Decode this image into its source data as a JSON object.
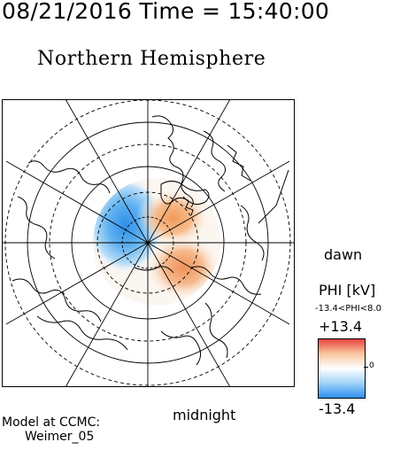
{
  "header": {
    "text": "08/21/2016 Time = 15:40:00"
  },
  "title": "Northern Hemisphere",
  "labels": {
    "dawn": "dawn",
    "midnight": "midnight"
  },
  "colorbar": {
    "title": "PHI [kV]",
    "range_text": "-13.4<PHI<8.0",
    "max_label": "+13.4",
    "min_label": "-13.4",
    "zero_label": "0",
    "colors": [
      "#2b8cf0",
      "#9fd2f7",
      "#ffffff",
      "#f8c7a0",
      "#e8403a"
    ]
  },
  "model": {
    "line1": "Model at CCMC:",
    "line2": "Weimer_05"
  },
  "map": {
    "projection": "polar stereographic, north pole centered",
    "potential": {
      "negative_cell_color": "#4aa6ee",
      "positive_cell_color": "#f5a060",
      "min_kv": -13.4,
      "max_kv": 8.0
    }
  }
}
